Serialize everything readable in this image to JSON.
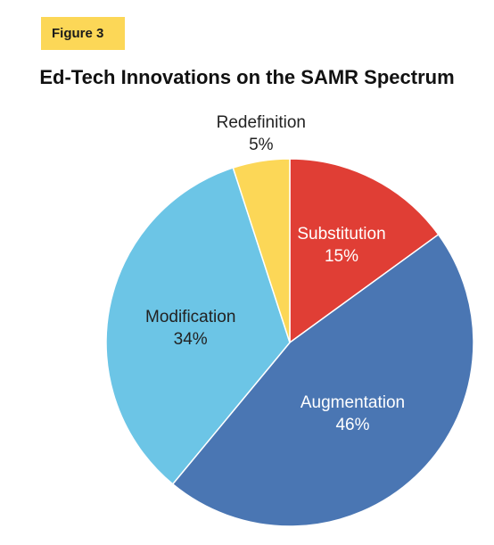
{
  "figure_label": "Figure 3",
  "chart_data": {
    "type": "pie",
    "title": "Ed-Tech Innovations on the SAMR Spectrum",
    "slices": [
      {
        "label": "Substitution",
        "value": 15,
        "value_label": "15%",
        "color": "#e03e35",
        "label_color": "#ffffff"
      },
      {
        "label": "Augmentation",
        "value": 46,
        "value_label": "46%",
        "color": "#4a76b3",
        "label_color": "#ffffff"
      },
      {
        "label": "Modification",
        "value": 34,
        "value_label": "34%",
        "color": "#6cc5e6",
        "label_color": "#222222"
      },
      {
        "label": "Redefinition",
        "value": 5,
        "value_label": "5%",
        "color": "#fcd757",
        "label_color": "#222222"
      }
    ]
  }
}
